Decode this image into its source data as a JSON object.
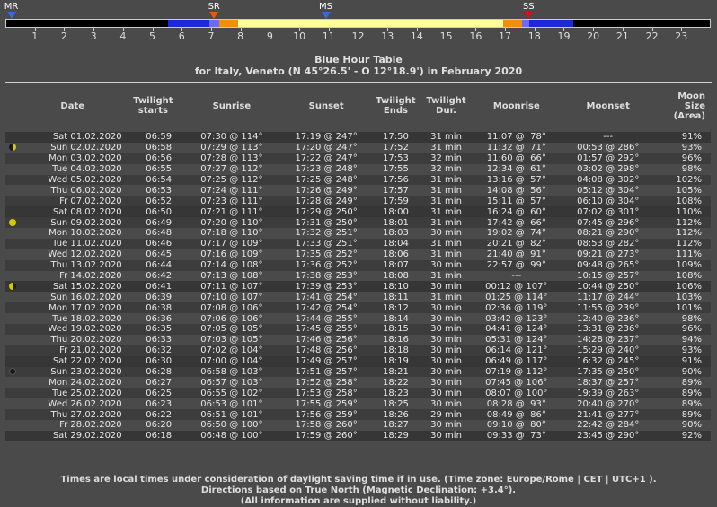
{
  "timeline": {
    "markers": [
      {
        "id": "mr",
        "label": "MR",
        "hour": 0.2
      },
      {
        "id": "sr",
        "label": "SR",
        "hour": 7.1
      },
      {
        "id": "ms",
        "label": "MS",
        "hour": 10.9
      },
      {
        "id": "ss",
        "label": "SS",
        "hour": 17.8
      }
    ],
    "segments": [
      {
        "from": 5.5,
        "to": 6.9,
        "color": "#1a2ad8"
      },
      {
        "from": 6.9,
        "to": 7.25,
        "color": "#6a6aff"
      },
      {
        "from": 7.25,
        "to": 7.9,
        "color": "#f0900a"
      },
      {
        "from": 7.9,
        "to": 16.9,
        "color": "#ffff9c"
      },
      {
        "from": 16.9,
        "to": 17.55,
        "color": "#f0900a"
      },
      {
        "from": 17.55,
        "to": 17.8,
        "color": "#6a6aff"
      },
      {
        "from": 17.8,
        "to": 19.3,
        "color": "#1a2ad8"
      }
    ],
    "hours": [
      "1",
      "2",
      "3",
      "4",
      "5",
      "6",
      "7",
      "8",
      "9",
      "10",
      "11",
      "12",
      "13",
      "14",
      "15",
      "16",
      "17",
      "18",
      "19",
      "20",
      "21",
      "22",
      "23"
    ]
  },
  "title": {
    "line1": "Blue Hour Table",
    "line2": "for Italy, Veneto (N 45°26.5' - O 12°18.9') in February 2020"
  },
  "headers": {
    "date": "Date",
    "twilight_starts_1": "Twilight",
    "twilight_starts_2": "starts",
    "sunrise": "Sunrise",
    "sunset": "Sunset",
    "twilight_ends_1": "Twilight",
    "twilight_ends_2": "Ends",
    "twilight_dur_1": "Twilight",
    "twilight_dur_2": "Dur.",
    "moonrise": "Moonrise",
    "moonset": "Moonset",
    "moon_size_1": "Moon",
    "moon_size_2": "Size",
    "moon_size_3": "(Area)"
  },
  "rows": [
    {
      "phase": "",
      "date": "Sat 01.02.2020",
      "tstart": "06:59",
      "sunrise": "07:30 @ 114°",
      "sunset": "17:19 @ 247°",
      "tend": "17:50",
      "dur": "31 min",
      "moonrise": "11:07 @  78°",
      "moonset": "---",
      "size": "91%"
    },
    {
      "phase": "first",
      "date": "Sun 02.02.2020",
      "tstart": "06:58",
      "sunrise": "07:29 @ 113°",
      "sunset": "17:20 @ 247°",
      "tend": "17:52",
      "dur": "31 min",
      "moonrise": "11:32 @  71°",
      "moonset": "00:53 @ 286°",
      "size": "93%"
    },
    {
      "phase": "",
      "date": "Mon 03.02.2020",
      "tstart": "06:56",
      "sunrise": "07:28 @ 113°",
      "sunset": "17:22 @ 247°",
      "tend": "17:53",
      "dur": "32 min",
      "moonrise": "11:60 @  66°",
      "moonset": "01:57 @ 292°",
      "size": "96%"
    },
    {
      "phase": "",
      "date": "Tue 04.02.2020",
      "tstart": "06:55",
      "sunrise": "07:27 @ 112°",
      "sunset": "17:23 @ 248°",
      "tend": "17:55",
      "dur": "32 min",
      "moonrise": "12:34 @  61°",
      "moonset": "03:02 @ 298°",
      "size": "98%"
    },
    {
      "phase": "",
      "date": "Wed 05.02.2020",
      "tstart": "06:54",
      "sunrise": "07:25 @ 112°",
      "sunset": "17:25 @ 248°",
      "tend": "17:56",
      "dur": "31 min",
      "moonrise": "13:16 @  57°",
      "moonset": "04:08 @ 302°",
      "size": "102%"
    },
    {
      "phase": "",
      "date": "Thu 06.02.2020",
      "tstart": "06:53",
      "sunrise": "07:24 @ 111°",
      "sunset": "17:26 @ 249°",
      "tend": "17:57",
      "dur": "31 min",
      "moonrise": "14:08 @  56°",
      "moonset": "05:12 @ 304°",
      "size": "105%"
    },
    {
      "phase": "",
      "date": "Fr 07.02.2020",
      "tstart": "06:52",
      "sunrise": "07:23 @ 111°",
      "sunset": "17:28 @ 249°",
      "tend": "17:59",
      "dur": "31 min",
      "moonrise": "15:11 @  57°",
      "moonset": "06:10 @ 304°",
      "size": "108%"
    },
    {
      "phase": "",
      "date": "Sat 08.02.2020",
      "tstart": "06:50",
      "sunrise": "07:21 @ 111°",
      "sunset": "17:29 @ 250°",
      "tend": "18:00",
      "dur": "31 min",
      "moonrise": "16:24 @  60°",
      "moonset": "07:02 @ 301°",
      "size": "110%"
    },
    {
      "phase": "full",
      "date": "Sun 09.02.2020",
      "tstart": "06:49",
      "sunrise": "07:20 @ 110°",
      "sunset": "17:31 @ 250°",
      "tend": "18:01",
      "dur": "31 min",
      "moonrise": "17:42 @  66°",
      "moonset": "07:45 @ 296°",
      "size": "112%"
    },
    {
      "phase": "",
      "date": "Mon 10.02.2020",
      "tstart": "06:48",
      "sunrise": "07:18 @ 110°",
      "sunset": "17:32 @ 251°",
      "tend": "18:03",
      "dur": "30 min",
      "moonrise": "19:02 @  74°",
      "moonset": "08:21 @ 290°",
      "size": "112%"
    },
    {
      "phase": "",
      "date": "Tue 11.02.2020",
      "tstart": "06:46",
      "sunrise": "07:17 @ 109°",
      "sunset": "17:33 @ 251°",
      "tend": "18:04",
      "dur": "31 min",
      "moonrise": "20:21 @  82°",
      "moonset": "08:53 @ 282°",
      "size": "112%"
    },
    {
      "phase": "",
      "date": "Wed 12.02.2020",
      "tstart": "06:45",
      "sunrise": "07:16 @ 109°",
      "sunset": "17:35 @ 252°",
      "tend": "18:06",
      "dur": "31 min",
      "moonrise": "21:40 @  91°",
      "moonset": "09:21 @ 273°",
      "size": "111%"
    },
    {
      "phase": "",
      "date": "Thu 13.02.2020",
      "tstart": "06:44",
      "sunrise": "07:14 @ 108°",
      "sunset": "17:36 @ 252°",
      "tend": "18:07",
      "dur": "30 min",
      "moonrise": "22:57 @  99°",
      "moonset": "09:48 @ 265°",
      "size": "109%"
    },
    {
      "phase": "",
      "date": "Fr 14.02.2020",
      "tstart": "06:42",
      "sunrise": "07:13 @ 108°",
      "sunset": "17:38 @ 253°",
      "tend": "18:08",
      "dur": "31 min",
      "moonrise": "---",
      "moonset": "10:15 @ 257°",
      "size": "108%"
    },
    {
      "phase": "last",
      "date": "Sat 15.02.2020",
      "tstart": "06:41",
      "sunrise": "07:11 @ 107°",
      "sunset": "17:39 @ 253°",
      "tend": "18:10",
      "dur": "30 min",
      "moonrise": "00:12 @ 107°",
      "moonset": "10:44 @ 250°",
      "size": "106%"
    },
    {
      "phase": "",
      "date": "Sun 16.02.2020",
      "tstart": "06:39",
      "sunrise": "07:10 @ 107°",
      "sunset": "17:41 @ 254°",
      "tend": "18:11",
      "dur": "31 min",
      "moonrise": "01:25 @ 114°",
      "moonset": "11:17 @ 244°",
      "size": "103%"
    },
    {
      "phase": "",
      "date": "Mon 17.02.2020",
      "tstart": "06:38",
      "sunrise": "07:08 @ 106°",
      "sunset": "17:42 @ 254°",
      "tend": "18:12",
      "dur": "30 min",
      "moonrise": "02:36 @ 119°",
      "moonset": "11:55 @ 239°",
      "size": "101%"
    },
    {
      "phase": "",
      "date": "Tue 18.02.2020",
      "tstart": "06:36",
      "sunrise": "07:06 @ 106°",
      "sunset": "17:44 @ 255°",
      "tend": "18:14",
      "dur": "30 min",
      "moonrise": "03:42 @ 123°",
      "moonset": "12:40 @ 236°",
      "size": "98%"
    },
    {
      "phase": "",
      "date": "Wed 19.02.2020",
      "tstart": "06:35",
      "sunrise": "07:05 @ 105°",
      "sunset": "17:45 @ 255°",
      "tend": "18:15",
      "dur": "30 min",
      "moonrise": "04:41 @ 124°",
      "moonset": "13:31 @ 236°",
      "size": "96%"
    },
    {
      "phase": "",
      "date": "Thu 20.02.2020",
      "tstart": "06:33",
      "sunrise": "07:03 @ 105°",
      "sunset": "17:46 @ 256°",
      "tend": "18:16",
      "dur": "30 min",
      "moonrise": "05:31 @ 124°",
      "moonset": "14:28 @ 237°",
      "size": "94%"
    },
    {
      "phase": "",
      "date": "Fr 21.02.2020",
      "tstart": "06:32",
      "sunrise": "07:02 @ 104°",
      "sunset": "17:48 @ 256°",
      "tend": "18:18",
      "dur": "30 min",
      "moonrise": "06:14 @ 121°",
      "moonset": "15:29 @ 240°",
      "size": "93%"
    },
    {
      "phase": "",
      "date": "Sat 22.02.2020",
      "tstart": "06:30",
      "sunrise": "07:00 @ 104°",
      "sunset": "17:49 @ 257°",
      "tend": "18:19",
      "dur": "30 min",
      "moonrise": "06:49 @ 117°",
      "moonset": "16:32 @ 245°",
      "size": "91%"
    },
    {
      "phase": "new",
      "date": "Sun 23.02.2020",
      "tstart": "06:28",
      "sunrise": "06:58 @ 103°",
      "sunset": "17:51 @ 257°",
      "tend": "18:21",
      "dur": "30 min",
      "moonrise": "07:19 @ 112°",
      "moonset": "17:35 @ 250°",
      "size": "90%"
    },
    {
      "phase": "",
      "date": "Mon 24.02.2020",
      "tstart": "06:27",
      "sunrise": "06:57 @ 103°",
      "sunset": "17:52 @ 258°",
      "tend": "18:22",
      "dur": "30 min",
      "moonrise": "07:45 @ 106°",
      "moonset": "18:37 @ 257°",
      "size": "89%"
    },
    {
      "phase": "",
      "date": "Tue 25.02.2020",
      "tstart": "06:25",
      "sunrise": "06:55 @ 102°",
      "sunset": "17:53 @ 258°",
      "tend": "18:23",
      "dur": "30 min",
      "moonrise": "08:07 @ 100°",
      "moonset": "19:39 @ 263°",
      "size": "89%"
    },
    {
      "phase": "",
      "date": "Wed 26.02.2020",
      "tstart": "06:23",
      "sunrise": "06:53 @ 101°",
      "sunset": "17:55 @ 259°",
      "tend": "18:25",
      "dur": "30 min",
      "moonrise": "08:28 @  93°",
      "moonset": "20:40 @ 270°",
      "size": "89%"
    },
    {
      "phase": "",
      "date": "Thu 27.02.2020",
      "tstart": "06:22",
      "sunrise": "06:51 @ 101°",
      "sunset": "17:56 @ 259°",
      "tend": "18:26",
      "dur": "29 min",
      "moonrise": "08:49 @  86°",
      "moonset": "21:41 @ 277°",
      "size": "89%"
    },
    {
      "phase": "",
      "date": "Fr 28.02.2020",
      "tstart": "06:20",
      "sunrise": "06:50 @ 100°",
      "sunset": "17:58 @ 260°",
      "tend": "18:27",
      "dur": "30 min",
      "moonrise": "09:10 @  80°",
      "moonset": "22:42 @ 284°",
      "size": "90%"
    },
    {
      "phase": "",
      "date": "Sat 29.02.2020",
      "tstart": "06:18",
      "sunrise": "06:48 @ 100°",
      "sunset": "17:59 @ 260°",
      "tend": "18:29",
      "dur": "30 min",
      "moonrise": "09:33 @  73°",
      "moonset": "23:45 @ 290°",
      "size": "92%"
    }
  ],
  "footer": {
    "line1": "Times are local times under consideration of daylight saving time if in use. (Time zone: Europe/Rome | CET | UTC+1 ).",
    "line2": "Directions based on True North (Magnetic Declination: +3.4°).",
    "line3": "(All information are supplied without liability.)"
  }
}
